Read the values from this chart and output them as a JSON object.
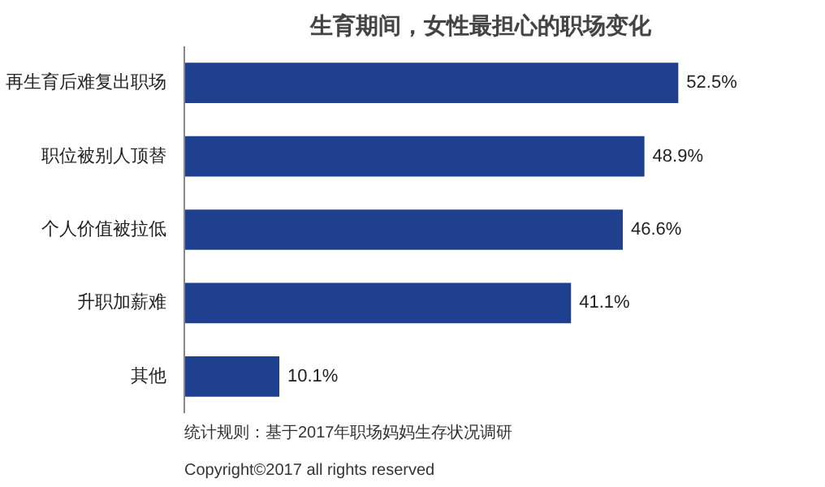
{
  "chart_data": {
    "type": "bar",
    "orientation": "horizontal",
    "title": "生育期间，女性最担心的职场变化",
    "categories": [
      "再生育后难复出职场",
      "职位被别人顶替",
      "个人价值被拉低",
      "升职加薪难",
      "其他"
    ],
    "values": [
      52.5,
      48.9,
      46.6,
      41.1,
      10.1
    ],
    "value_labels": [
      "52.5%",
      "48.9%",
      "46.6%",
      "41.1%",
      "10.1%"
    ],
    "color": "#1f3f8f",
    "grid": false,
    "annotations": [
      "统计规则：基于2017年职场妈妈生存状况调研",
      "Copyright©2017 all rights reserved"
    ]
  }
}
